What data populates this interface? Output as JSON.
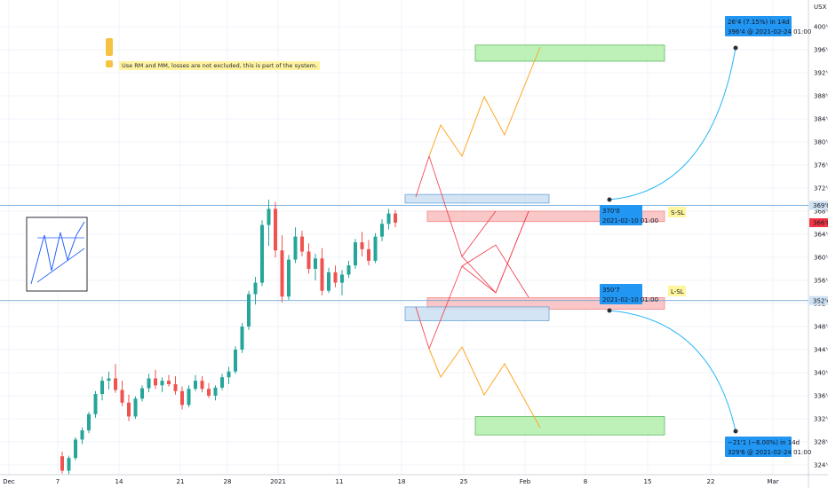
{
  "chart_data": {
    "type": "candlestick",
    "x_ticks": [
      "Dec",
      "7",
      "14",
      "21",
      "28",
      "2021",
      "11",
      "18",
      "25",
      "Feb",
      "8",
      "15",
      "22",
      "Mar"
    ],
    "y_ticks": [
      "324'0",
      "328'0",
      "332'0",
      "336'0",
      "340'0",
      "344'0",
      "348'0",
      "352'0",
      "356'0",
      "360'0",
      "364'0",
      "368'0",
      "372'0",
      "376'0",
      "380'0",
      "384'0",
      "388'0",
      "392'0",
      "396'0",
      "400'0"
    ],
    "y_unit": "USX",
    "price_tags": [
      {
        "label": "369'0",
        "value": 369.0,
        "color": "#cfe2f3"
      },
      {
        "label": "366'0",
        "value": 366.0,
        "color": "#f23645"
      },
      {
        "label": "352'4",
        "value": 352.5,
        "color": "#cfe2f3"
      }
    ],
    "horizontal_lines": [
      369.0,
      352.5
    ],
    "candles_approx": [
      [
        325.5,
        326.3,
        322.5,
        323.0
      ],
      [
        323.0,
        325.6,
        322.4,
        325.2
      ],
      [
        325.2,
        328.8,
        324.8,
        328.4
      ],
      [
        328.4,
        330.5,
        327.6,
        330.0
      ],
      [
        330.0,
        333.2,
        329.5,
        332.8
      ],
      [
        332.8,
        336.8,
        332.2,
        336.3
      ],
      [
        336.3,
        339.3,
        335.2,
        338.6
      ],
      [
        338.6,
        340.2,
        337.1,
        339.0
      ],
      [
        339.0,
        341.5,
        336.5,
        337.0
      ],
      [
        337.0,
        338.6,
        334.2,
        334.8
      ],
      [
        334.8,
        336.2,
        331.6,
        332.4
      ],
      [
        332.4,
        335.9,
        332.0,
        335.5
      ],
      [
        335.5,
        337.8,
        335.0,
        337.3
      ],
      [
        337.3,
        339.8,
        336.6,
        339.0
      ],
      [
        339.0,
        340.5,
        337.2,
        337.8
      ],
      [
        337.8,
        339.2,
        336.6,
        338.6
      ],
      [
        338.6,
        339.6,
        337.6,
        338.0
      ],
      [
        338.0,
        339.4,
        336.2,
        336.8
      ],
      [
        336.8,
        337.6,
        333.6,
        334.4
      ],
      [
        334.4,
        337.8,
        334.0,
        337.2
      ],
      [
        337.2,
        339.6,
        336.8,
        338.6
      ],
      [
        338.6,
        339.4,
        336.6,
        337.2
      ],
      [
        337.2,
        338.2,
        335.6,
        336.0
      ],
      [
        336.0,
        337.8,
        335.2,
        337.4
      ],
      [
        337.4,
        339.8,
        337.0,
        339.2
      ],
      [
        339.2,
        341.0,
        338.0,
        340.2
      ],
      [
        340.2,
        344.6,
        339.8,
        344.0
      ],
      [
        344.0,
        348.6,
        343.4,
        348.0
      ],
      [
        348.0,
        354.2,
        347.4,
        353.6
      ],
      [
        353.6,
        356.6,
        351.8,
        355.6
      ],
      [
        355.6,
        366.4,
        355.0,
        365.6
      ],
      [
        365.6,
        370.0,
        362.0,
        368.4
      ],
      [
        368.4,
        369.6,
        360.0,
        361.2
      ],
      [
        361.2,
        363.8,
        352.2,
        353.2
      ],
      [
        353.2,
        360.4,
        352.6,
        359.6
      ],
      [
        359.6,
        365.2,
        359.0,
        363.6
      ],
      [
        363.6,
        364.6,
        360.2,
        361.0
      ],
      [
        361.0,
        362.4,
        357.2,
        358.0
      ],
      [
        358.0,
        360.6,
        356.0,
        359.8
      ],
      [
        359.8,
        361.6,
        353.4,
        354.2
      ],
      [
        354.2,
        358.2,
        353.8,
        357.4
      ],
      [
        357.4,
        358.6,
        354.8,
        355.6
      ],
      [
        355.6,
        357.8,
        353.4,
        357.0
      ],
      [
        357.0,
        359.4,
        356.4,
        358.6
      ],
      [
        358.6,
        363.2,
        358.0,
        362.6
      ],
      [
        362.6,
        364.4,
        360.2,
        361.4
      ],
      [
        361.4,
        363.0,
        358.6,
        359.4
      ],
      [
        359.4,
        364.2,
        359.0,
        363.6
      ],
      [
        363.6,
        366.6,
        362.8,
        365.8
      ],
      [
        365.8,
        368.4,
        364.8,
        367.6
      ],
      [
        367.6,
        368.2,
        365.2,
        366.0
      ]
    ],
    "annotations": [
      {
        "kind": "note",
        "text": "Use RM and MM, losses are not excluded, this is part of the system."
      },
      {
        "kind": "label",
        "text": "S-SL"
      },
      {
        "kind": "label",
        "text": "L-SL"
      },
      {
        "kind": "price_marker",
        "price": "370'0",
        "date": "2021-02-10 01:00"
      },
      {
        "kind": "price_marker",
        "price": "350'7",
        "date": "2021-02-10 01:00"
      },
      {
        "kind": "projection",
        "line1": "26'4 (7.15%) in 14d",
        "line2": "396'4 @ 2021-02-24 01:00"
      },
      {
        "kind": "projection",
        "line1": "−21'1 (−6.00%) in 14d",
        "line2": "329'6 @ 2021-02-24 01:00"
      }
    ],
    "zones": [
      {
        "color": "#b6f0b0",
        "from": 394.0,
        "to": 396.8
      },
      {
        "color": "#cfe2f3",
        "from": 369.4,
        "to": 370.9
      },
      {
        "color": "#f9c2c2",
        "from": 366.2,
        "to": 368.0
      },
      {
        "color": "#f9c2c2",
        "from": 351.0,
        "to": 353.0
      },
      {
        "color": "#cfe2f3",
        "from": 349.0,
        "to": 351.4
      },
      {
        "color": "#b6f0b0",
        "from": 329.2,
        "to": 332.4
      }
    ]
  }
}
